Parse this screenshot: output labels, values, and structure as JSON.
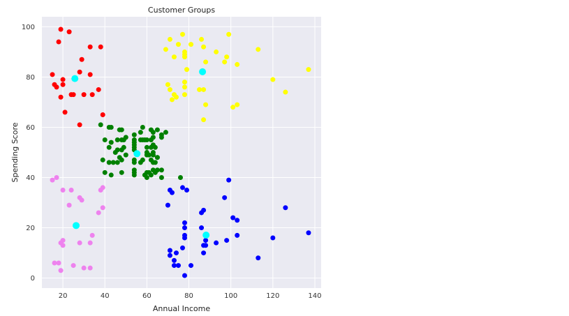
{
  "chart_data": {
    "type": "scatter",
    "title": "Customer Groups",
    "xlabel": "Annual Income",
    "ylabel": "Spending Score",
    "xlim": [
      10,
      143
    ],
    "ylim": [
      -4,
      104
    ],
    "xticks": [
      20,
      40,
      60,
      80,
      100,
      120,
      140
    ],
    "yticks": [
      0,
      20,
      40,
      60,
      80,
      100
    ],
    "grid": true,
    "background": "#eaeaf2",
    "series": [
      {
        "color": "#ff0000",
        "points": [
          [
            19,
            99
          ],
          [
            23,
            98
          ],
          [
            18,
            94
          ],
          [
            33,
            92
          ],
          [
            38,
            92
          ],
          [
            29,
            87
          ],
          [
            15,
            81
          ],
          [
            20,
            79
          ],
          [
            28,
            82
          ],
          [
            33,
            81
          ],
          [
            16,
            77
          ],
          [
            17,
            76
          ],
          [
            20,
            77
          ],
          [
            37,
            75
          ],
          [
            19,
            72
          ],
          [
            24,
            73
          ],
          [
            25,
            73
          ],
          [
            30,
            73
          ],
          [
            34,
            73
          ],
          [
            39,
            65
          ],
          [
            21,
            66
          ],
          [
            28,
            61
          ]
        ]
      },
      {
        "color": "#ffff00",
        "points": [
          [
            71,
            95
          ],
          [
            77,
            97
          ],
          [
            86,
            95
          ],
          [
            99,
            97
          ],
          [
            75,
            93
          ],
          [
            87,
            92
          ],
          [
            81,
            93
          ],
          [
            69,
            91
          ],
          [
            78,
            90
          ],
          [
            93,
            90
          ],
          [
            113,
            91
          ],
          [
            78,
            89
          ],
          [
            73,
            88
          ],
          [
            78,
            88
          ],
          [
            88,
            86
          ],
          [
            97,
            86
          ],
          [
            98,
            88
          ],
          [
            103,
            85
          ],
          [
            137,
            83
          ],
          [
            79,
            83
          ],
          [
            120,
            79
          ],
          [
            70,
            77
          ],
          [
            78,
            78
          ],
          [
            71,
            75
          ],
          [
            78,
            76
          ],
          [
            85,
            75
          ],
          [
            87,
            75
          ],
          [
            126,
            74
          ],
          [
            72,
            71
          ],
          [
            73,
            73
          ],
          [
            74,
            72
          ],
          [
            78,
            73
          ],
          [
            88,
            69
          ],
          [
            101,
            68
          ],
          [
            103,
            69
          ],
          [
            87,
            63
          ]
        ]
      },
      {
        "color": "#008000",
        "points": [
          [
            38,
            61
          ],
          [
            42,
            60
          ],
          [
            43,
            60
          ],
          [
            47,
            59
          ],
          [
            48,
            59
          ],
          [
            54,
            57
          ],
          [
            57,
            58
          ],
          [
            58,
            60
          ],
          [
            60,
            55
          ],
          [
            62,
            59
          ],
          [
            63,
            58
          ],
          [
            65,
            59
          ],
          [
            67,
            57
          ],
          [
            69,
            58
          ],
          [
            40,
            55
          ],
          [
            42,
            52
          ],
          [
            43,
            54
          ],
          [
            45,
            50
          ],
          [
            46,
            51
          ],
          [
            46,
            55
          ],
          [
            48,
            51
          ],
          [
            48,
            55
          ],
          [
            49,
            55
          ],
          [
            49,
            52
          ],
          [
            50,
            56
          ],
          [
            50,
            49
          ],
          [
            54,
            55
          ],
          [
            54,
            54
          ],
          [
            54,
            53
          ],
          [
            54,
            52
          ],
          [
            54,
            51
          ],
          [
            57,
            55
          ],
          [
            58,
            55
          ],
          [
            59,
            55
          ],
          [
            60,
            52
          ],
          [
            60,
            50
          ],
          [
            60,
            49
          ],
          [
            61,
            49
          ],
          [
            62,
            55
          ],
          [
            62,
            52
          ],
          [
            63,
            56
          ],
          [
            63,
            53
          ],
          [
            63,
            50
          ],
          [
            64,
            52
          ],
          [
            65,
            48
          ],
          [
            67,
            56
          ],
          [
            39,
            47
          ],
          [
            40,
            42
          ],
          [
            42,
            46
          ],
          [
            43,
            41
          ],
          [
            44,
            46
          ],
          [
            46,
            46
          ],
          [
            47,
            48
          ],
          [
            48,
            47
          ],
          [
            48,
            42
          ],
          [
            54,
            47
          ],
          [
            54,
            46
          ],
          [
            54,
            43
          ],
          [
            54,
            42
          ],
          [
            54,
            41
          ],
          [
            57,
            46
          ],
          [
            58,
            47
          ],
          [
            59,
            41
          ],
          [
            60,
            40
          ],
          [
            60,
            42
          ],
          [
            61,
            42
          ],
          [
            62,
            41
          ],
          [
            62,
            47
          ],
          [
            63,
            43
          ],
          [
            63,
            46
          ],
          [
            63,
            49
          ],
          [
            64,
            42
          ],
          [
            64,
            46
          ],
          [
            65,
            43
          ],
          [
            65,
            48
          ],
          [
            67,
            40
          ],
          [
            67,
            43
          ],
          [
            76,
            40
          ]
        ]
      },
      {
        "color": "#ee82ee",
        "points": [
          [
            15,
            39
          ],
          [
            17,
            40
          ],
          [
            20,
            35
          ],
          [
            24,
            35
          ],
          [
            38,
            35
          ],
          [
            39,
            36
          ],
          [
            28,
            32
          ],
          [
            29,
            31
          ],
          [
            23,
            29
          ],
          [
            39,
            28
          ],
          [
            37,
            26
          ],
          [
            34,
            17
          ],
          [
            19,
            14
          ],
          [
            20,
            15
          ],
          [
            20,
            13
          ],
          [
            28,
            14
          ],
          [
            33,
            14
          ],
          [
            16,
            6
          ],
          [
            18,
            6
          ],
          [
            25,
            5
          ],
          [
            30,
            4
          ],
          [
            33,
            4
          ],
          [
            19,
            3
          ]
        ]
      },
      {
        "color": "#0000ff",
        "points": [
          [
            71,
            35
          ],
          [
            72,
            34
          ],
          [
            77,
            36
          ],
          [
            79,
            35
          ],
          [
            99,
            39
          ],
          [
            97,
            32
          ],
          [
            70,
            29
          ],
          [
            126,
            28
          ],
          [
            86,
            26
          ],
          [
            87,
            27
          ],
          [
            101,
            24
          ],
          [
            103,
            23
          ],
          [
            78,
            22
          ],
          [
            78,
            20
          ],
          [
            86,
            20
          ],
          [
            78,
            17
          ],
          [
            78,
            16
          ],
          [
            103,
            17
          ],
          [
            137,
            18
          ],
          [
            120,
            16
          ],
          [
            88,
            15
          ],
          [
            88,
            13
          ],
          [
            87,
            13
          ],
          [
            93,
            14
          ],
          [
            98,
            15
          ],
          [
            71,
            11
          ],
          [
            77,
            12
          ],
          [
            71,
            9
          ],
          [
            74,
            10
          ],
          [
            87,
            10
          ],
          [
            113,
            8
          ],
          [
            73,
            7
          ],
          [
            73,
            5
          ],
          [
            75,
            5
          ],
          [
            81,
            5
          ],
          [
            78,
            1
          ]
        ]
      },
      {
        "color": "#00ffff",
        "centroid": true,
        "points": [
          [
            25.7,
            79.4
          ],
          [
            86.5,
            82.1
          ],
          [
            55.3,
            49.5
          ],
          [
            26.3,
            20.9
          ],
          [
            88.2,
            17.1
          ]
        ]
      }
    ]
  }
}
